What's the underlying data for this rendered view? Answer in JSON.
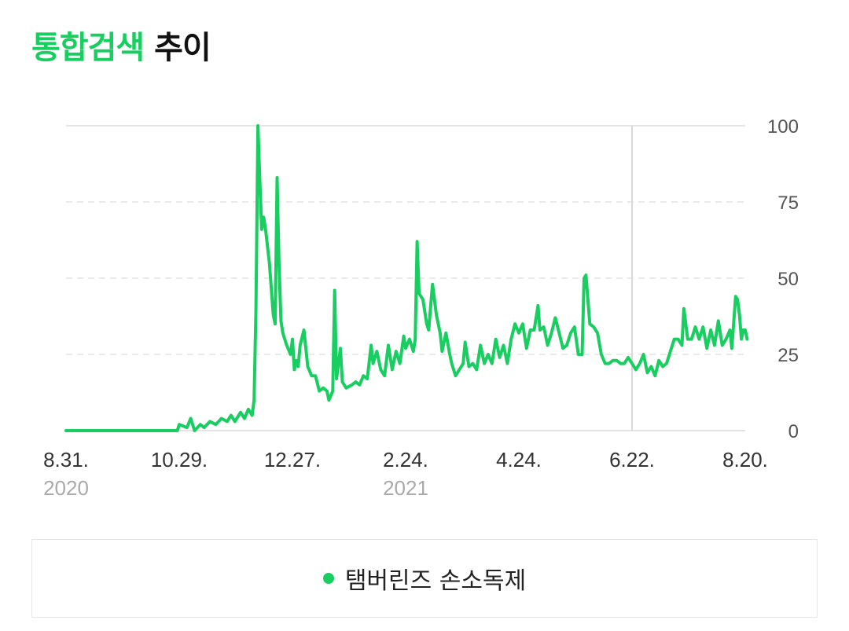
{
  "header": {
    "title_accent": "통합검색",
    "title_rest": "추이"
  },
  "colors": {
    "series": "#19ce60",
    "grid": "#e4e4e4",
    "cursor": "#d9d9d9"
  },
  "chart_data": {
    "type": "line",
    "title": "통합검색 추이",
    "xlabel": "",
    "ylabel": "",
    "ylim": [
      0,
      100
    ],
    "yticks": [
      0,
      25,
      50,
      75,
      100
    ],
    "x_range": [
      "2020-08-31",
      "2021-08-20"
    ],
    "x_ticks": [
      {
        "date": "2020-08-31",
        "label": "8.31.",
        "sub": "2020"
      },
      {
        "date": "2020-10-29",
        "label": "10.29.",
        "sub": ""
      },
      {
        "date": "2020-12-27",
        "label": "12.27.",
        "sub": ""
      },
      {
        "date": "2021-02-24",
        "label": "2.24.",
        "sub": "2021"
      },
      {
        "date": "2021-04-24",
        "label": "4.24.",
        "sub": ""
      },
      {
        "date": "2021-06-22",
        "label": "6.22.",
        "sub": ""
      },
      {
        "date": "2021-08-20",
        "label": "8.20.",
        "sub": ""
      }
    ],
    "cursor_date": "2021-06-22",
    "grid": true,
    "legend_position": "bottom",
    "series": [
      {
        "name": "탬버린즈 손소독제",
        "points": [
          [
            "2020-08-31",
            0
          ],
          [
            "2020-10-01",
            0
          ],
          [
            "2020-10-28",
            0
          ],
          [
            "2020-10-29",
            2
          ],
          [
            "2020-11-02",
            1
          ],
          [
            "2020-11-04",
            4
          ],
          [
            "2020-11-06",
            0
          ],
          [
            "2020-11-09",
            2
          ],
          [
            "2020-11-11",
            1
          ],
          [
            "2020-11-14",
            3
          ],
          [
            "2020-11-17",
            2
          ],
          [
            "2020-11-20",
            4
          ],
          [
            "2020-11-23",
            3
          ],
          [
            "2020-11-25",
            5
          ],
          [
            "2020-11-27",
            3
          ],
          [
            "2020-11-30",
            6
          ],
          [
            "2020-12-02",
            4
          ],
          [
            "2020-12-04",
            7
          ],
          [
            "2020-12-06",
            5
          ],
          [
            "2020-12-07",
            10
          ],
          [
            "2020-12-08",
            40
          ],
          [
            "2020-12-09",
            100
          ],
          [
            "2020-12-10",
            82
          ],
          [
            "2020-12-11",
            66
          ],
          [
            "2020-12-12",
            70
          ],
          [
            "2020-12-13",
            66
          ],
          [
            "2020-12-15",
            55
          ],
          [
            "2020-12-17",
            38
          ],
          [
            "2020-12-18",
            35
          ],
          [
            "2020-12-19",
            83
          ],
          [
            "2020-12-20",
            55
          ],
          [
            "2020-12-21",
            36
          ],
          [
            "2020-12-22",
            32
          ],
          [
            "2020-12-24",
            28
          ],
          [
            "2020-12-26",
            25
          ],
          [
            "2020-12-27",
            30
          ],
          [
            "2020-12-28",
            20
          ],
          [
            "2020-12-29",
            23
          ],
          [
            "2020-12-30",
            21
          ],
          [
            "2020-12-31",
            28
          ],
          [
            "2021-01-02",
            33
          ],
          [
            "2021-01-04",
            21
          ],
          [
            "2021-01-06",
            18
          ],
          [
            "2021-01-08",
            18
          ],
          [
            "2021-01-10",
            13
          ],
          [
            "2021-01-12",
            14
          ],
          [
            "2021-01-14",
            13
          ],
          [
            "2021-01-15",
            10
          ],
          [
            "2021-01-17",
            13
          ],
          [
            "2021-01-18",
            46
          ],
          [
            "2021-01-19",
            17
          ],
          [
            "2021-01-21",
            27
          ],
          [
            "2021-01-22",
            16
          ],
          [
            "2021-01-24",
            14
          ],
          [
            "2021-01-27",
            15
          ],
          [
            "2021-01-29",
            16
          ],
          [
            "2021-01-31",
            15
          ],
          [
            "2021-02-02",
            18
          ],
          [
            "2021-02-04",
            17
          ],
          [
            "2021-02-06",
            28
          ],
          [
            "2021-02-07",
            22
          ],
          [
            "2021-02-09",
            26
          ],
          [
            "2021-02-11",
            20
          ],
          [
            "2021-02-13",
            18
          ],
          [
            "2021-02-15",
            28
          ],
          [
            "2021-02-17",
            20
          ],
          [
            "2021-02-19",
            26
          ],
          [
            "2021-02-21",
            22
          ],
          [
            "2021-02-23",
            31
          ],
          [
            "2021-02-24",
            27
          ],
          [
            "2021-02-26",
            30
          ],
          [
            "2021-02-28",
            26
          ],
          [
            "2021-03-01",
            30
          ],
          [
            "2021-03-02",
            62
          ],
          [
            "2021-03-03",
            45
          ],
          [
            "2021-03-05",
            43
          ],
          [
            "2021-03-07",
            35
          ],
          [
            "2021-03-08",
            33
          ],
          [
            "2021-03-10",
            48
          ],
          [
            "2021-03-12",
            38
          ],
          [
            "2021-03-14",
            32
          ],
          [
            "2021-03-15",
            26
          ],
          [
            "2021-03-17",
            32
          ],
          [
            "2021-03-19",
            25
          ],
          [
            "2021-03-20",
            22
          ],
          [
            "2021-03-22",
            18
          ],
          [
            "2021-03-24",
            20
          ],
          [
            "2021-03-26",
            22
          ],
          [
            "2021-03-27",
            29
          ],
          [
            "2021-03-29",
            21
          ],
          [
            "2021-03-31",
            22
          ],
          [
            "2021-04-02",
            20
          ],
          [
            "2021-04-04",
            28
          ],
          [
            "2021-04-06",
            22
          ],
          [
            "2021-04-08",
            25
          ],
          [
            "2021-04-10",
            22
          ],
          [
            "2021-04-12",
            30
          ],
          [
            "2021-04-14",
            24
          ],
          [
            "2021-04-16",
            28
          ],
          [
            "2021-04-18",
            22
          ],
          [
            "2021-04-20",
            30
          ],
          [
            "2021-04-22",
            35
          ],
          [
            "2021-04-24",
            32
          ],
          [
            "2021-04-26",
            35
          ],
          [
            "2021-04-28",
            27
          ],
          [
            "2021-04-30",
            33
          ],
          [
            "2021-05-02",
            33
          ],
          [
            "2021-05-04",
            41
          ],
          [
            "2021-05-05",
            33
          ],
          [
            "2021-05-07",
            34
          ],
          [
            "2021-05-09",
            28
          ],
          [
            "2021-05-11",
            32
          ],
          [
            "2021-05-13",
            37
          ],
          [
            "2021-05-15",
            32
          ],
          [
            "2021-05-17",
            27
          ],
          [
            "2021-05-19",
            28
          ],
          [
            "2021-05-21",
            32
          ],
          [
            "2021-05-23",
            34
          ],
          [
            "2021-05-25",
            25
          ],
          [
            "2021-05-27",
            25
          ],
          [
            "2021-05-28",
            50
          ],
          [
            "2021-05-29",
            51
          ],
          [
            "2021-05-31",
            35
          ],
          [
            "2021-06-02",
            34
          ],
          [
            "2021-06-04",
            32
          ],
          [
            "2021-06-06",
            25
          ],
          [
            "2021-06-08",
            22
          ],
          [
            "2021-06-10",
            22
          ],
          [
            "2021-06-12",
            23
          ],
          [
            "2021-06-14",
            23
          ],
          [
            "2021-06-16",
            22
          ],
          [
            "2021-06-18",
            22
          ],
          [
            "2021-06-20",
            24
          ],
          [
            "2021-06-22",
            22
          ],
          [
            "2021-06-24",
            20
          ],
          [
            "2021-06-26",
            22
          ],
          [
            "2021-06-28",
            25
          ],
          [
            "2021-06-30",
            19
          ],
          [
            "2021-07-02",
            21
          ],
          [
            "2021-07-04",
            18
          ],
          [
            "2021-07-06",
            23
          ],
          [
            "2021-07-08",
            21
          ],
          [
            "2021-07-10",
            22
          ],
          [
            "2021-07-12",
            26
          ],
          [
            "2021-07-14",
            30
          ],
          [
            "2021-07-16",
            30
          ],
          [
            "2021-07-18",
            28
          ],
          [
            "2021-07-19",
            40
          ],
          [
            "2021-07-21",
            30
          ],
          [
            "2021-07-23",
            30
          ],
          [
            "2021-07-25",
            34
          ],
          [
            "2021-07-27",
            30
          ],
          [
            "2021-07-29",
            34
          ],
          [
            "2021-07-31",
            27
          ],
          [
            "2021-08-02",
            33
          ],
          [
            "2021-08-04",
            28
          ],
          [
            "2021-08-06",
            36
          ],
          [
            "2021-08-08",
            28
          ],
          [
            "2021-08-10",
            30
          ],
          [
            "2021-08-12",
            33
          ],
          [
            "2021-08-13",
            27
          ],
          [
            "2021-08-15",
            44
          ],
          [
            "2021-08-16",
            43
          ],
          [
            "2021-08-17",
            38
          ],
          [
            "2021-08-18",
            30
          ],
          [
            "2021-08-19",
            33
          ],
          [
            "2021-08-20",
            33
          ],
          [
            "2021-08-21",
            30
          ]
        ]
      }
    ]
  }
}
